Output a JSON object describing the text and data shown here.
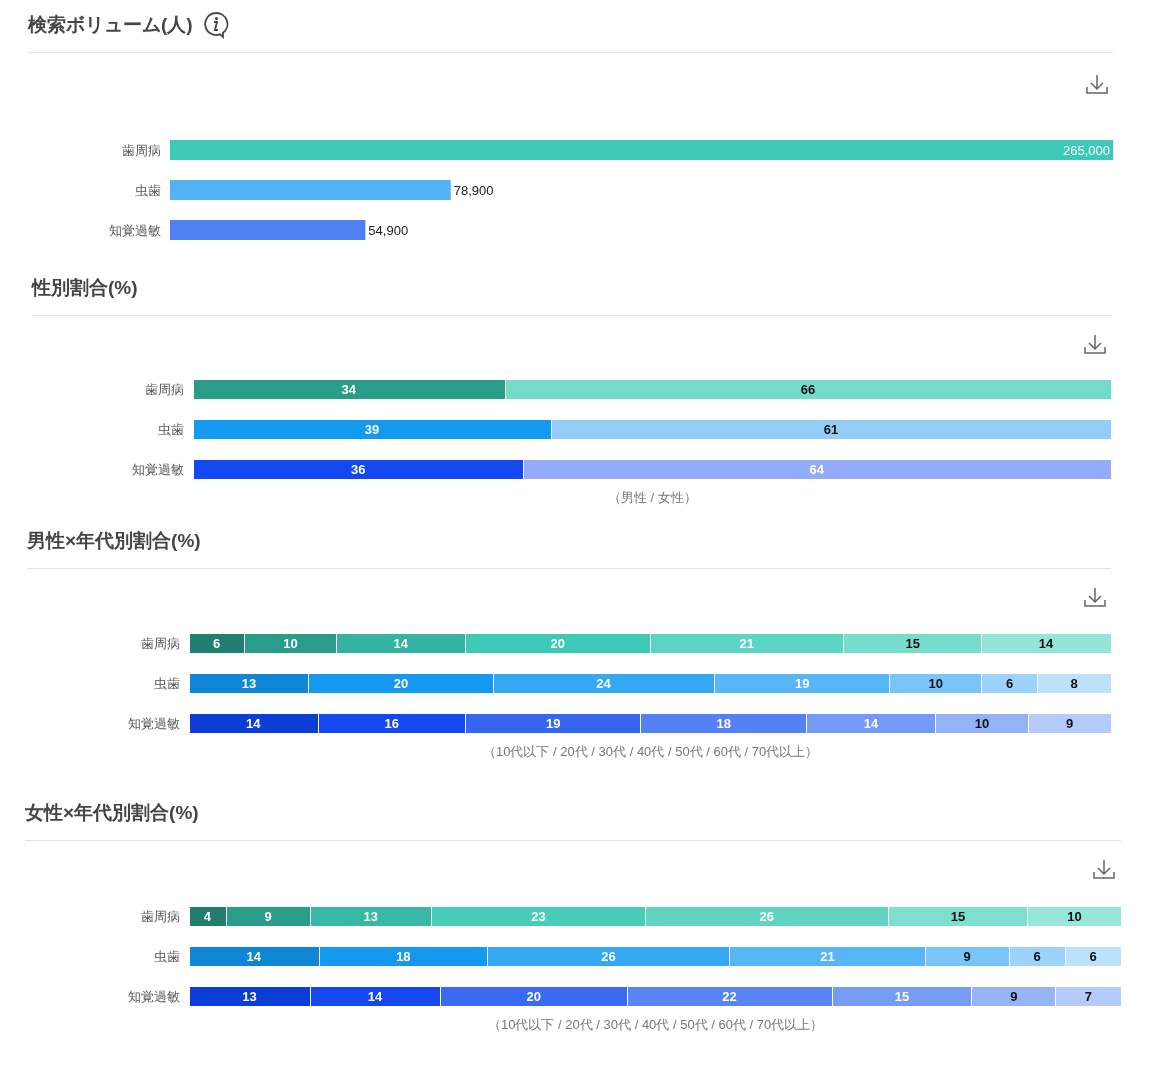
{
  "chart_data": [
    {
      "type": "bar",
      "title": "検索ボリューム(人)",
      "orientation": "horizontal",
      "categories": [
        "歯周病",
        "虫歯",
        "知覚過敏"
      ],
      "values": [
        265000,
        78900,
        54900
      ],
      "colors": [
        "#3ec9b6",
        "#52b4f5",
        "#4f7ff0"
      ],
      "value_labels": [
        "265,000",
        "78,900",
        "54,900"
      ],
      "xlim": [
        0,
        265000
      ],
      "tick_labels": "y"
    },
    {
      "type": "bar",
      "title": "性別割合(%)",
      "orientation": "horizontal",
      "stacked": true,
      "categories": [
        "歯周病",
        "虫歯",
        "知覚過敏"
      ],
      "xlim": [
        0,
        100
      ],
      "tick_labels": "y",
      "data_labels": true,
      "annotations": [
        "（男性 / 女性）"
      ],
      "series": [
        {
          "colors": [
            "#2a9d8a",
            "#1399ef",
            "#1447f0"
          ],
          "values": [
            34,
            39,
            36
          ]
        },
        {
          "colors": [
            "#74dbc9",
            "#94cdf8",
            "#93abf8"
          ],
          "values": [
            66,
            61,
            64
          ]
        }
      ]
    },
    {
      "type": "bar",
      "title": "男性×年代別割合(%)",
      "orientation": "horizontal",
      "stacked": true,
      "categories": [
        "歯周病",
        "虫歯",
        "知覚過敏"
      ],
      "xlim": [
        0,
        100
      ],
      "tick_labels": "y",
      "data_labels": true,
      "annotations": [
        "（10代以下 / 20代 / 30代 / 40代 / 50代 / 60代 / 70代以上）"
      ],
      "series": [
        {
          "colors": [
            "#1f7f70",
            "#0f87d6",
            "#0c3dd6"
          ],
          "values": [
            6,
            13,
            14
          ]
        },
        {
          "colors": [
            "#2a9d8a",
            "#1399ef",
            "#1447f0"
          ],
          "values": [
            10,
            20,
            16
          ]
        },
        {
          "colors": [
            "#33b3a0",
            "#35a8f3",
            "#3566f2"
          ],
          "values": [
            14,
            24,
            19
          ]
        },
        {
          "colors": [
            "#3ec9b6",
            "#57b7f6",
            "#5480f4"
          ],
          "values": [
            20,
            19,
            18
          ]
        },
        {
          "colors": [
            "#5cd4c2",
            "#79c5f8",
            "#7499f6"
          ],
          "values": [
            21,
            10,
            14
          ]
        },
        {
          "colors": [
            "#78dccc",
            "#9bd3fa",
            "#93b2f8"
          ],
          "values": [
            15,
            6,
            10
          ]
        },
        {
          "colors": [
            "#94e4d8",
            "#bde2fc",
            "#b3cafa"
          ],
          "values": [
            14,
            8,
            9
          ]
        }
      ]
    },
    {
      "type": "bar",
      "title": "女性×年代別割合(%)",
      "orientation": "horizontal",
      "stacked": true,
      "categories": [
        "歯周病",
        "虫歯",
        "知覚過敏"
      ],
      "xlim": [
        0,
        100
      ],
      "tick_labels": "y",
      "data_labels": true,
      "annotations": [
        "（10代以下 / 20代 / 30代 / 40代 / 50代 / 60代 / 70代以上）"
      ],
      "series": [
        {
          "colors": [
            "#237d6e",
            "#0f87d6",
            "#0c3dd6"
          ],
          "values": [
            4,
            14,
            13
          ]
        },
        {
          "colors": [
            "#2a9d8a",
            "#1399ef",
            "#1447f0"
          ],
          "values": [
            9,
            18,
            14
          ]
        },
        {
          "colors": [
            "#38b9a6",
            "#35a8f3",
            "#3a6af2"
          ],
          "values": [
            13,
            26,
            20
          ]
        },
        {
          "colors": [
            "#48cdb9",
            "#57b7f6",
            "#5884f4"
          ],
          "values": [
            23,
            21,
            22
          ]
        },
        {
          "colors": [
            "#62d2c1",
            "#79c5f8",
            "#779cf6"
          ],
          "values": [
            26,
            9,
            15
          ]
        },
        {
          "colors": [
            "#7edfcf",
            "#9bd3fa",
            "#96b4f8"
          ],
          "values": [
            15,
            6,
            9
          ]
        },
        {
          "colors": [
            "#98e5da",
            "#bde2fc",
            "#b5ccfa"
          ],
          "values": [
            10,
            6,
            7
          ]
        }
      ]
    }
  ]
}
